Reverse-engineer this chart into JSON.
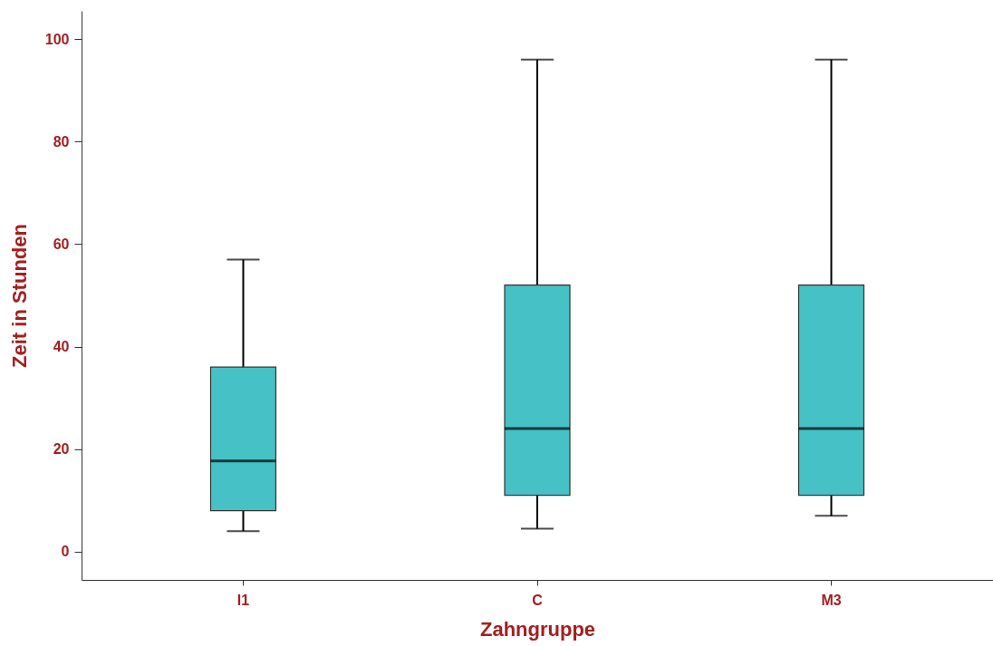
{
  "chart_data": {
    "type": "box",
    "xlabel": "Zahngruppe",
    "ylabel": "Zeit in Stunden",
    "categories": [
      "I1",
      "C",
      "M3"
    ],
    "color": "#46c1c5",
    "boxes": [
      {
        "low": 4,
        "q1": 8,
        "median": 17.7,
        "q3": 36,
        "high": 57
      },
      {
        "low": 4.5,
        "q1": 11,
        "median": 24,
        "q3": 52,
        "high": 96
      },
      {
        "low": 7,
        "q1": 11,
        "median": 24,
        "q3": 52,
        "high": 96
      }
    ],
    "ylim": [
      -5.5,
      105.5
    ],
    "yticks": [
      0,
      20,
      40,
      60,
      80,
      100
    ],
    "grid": false
  }
}
